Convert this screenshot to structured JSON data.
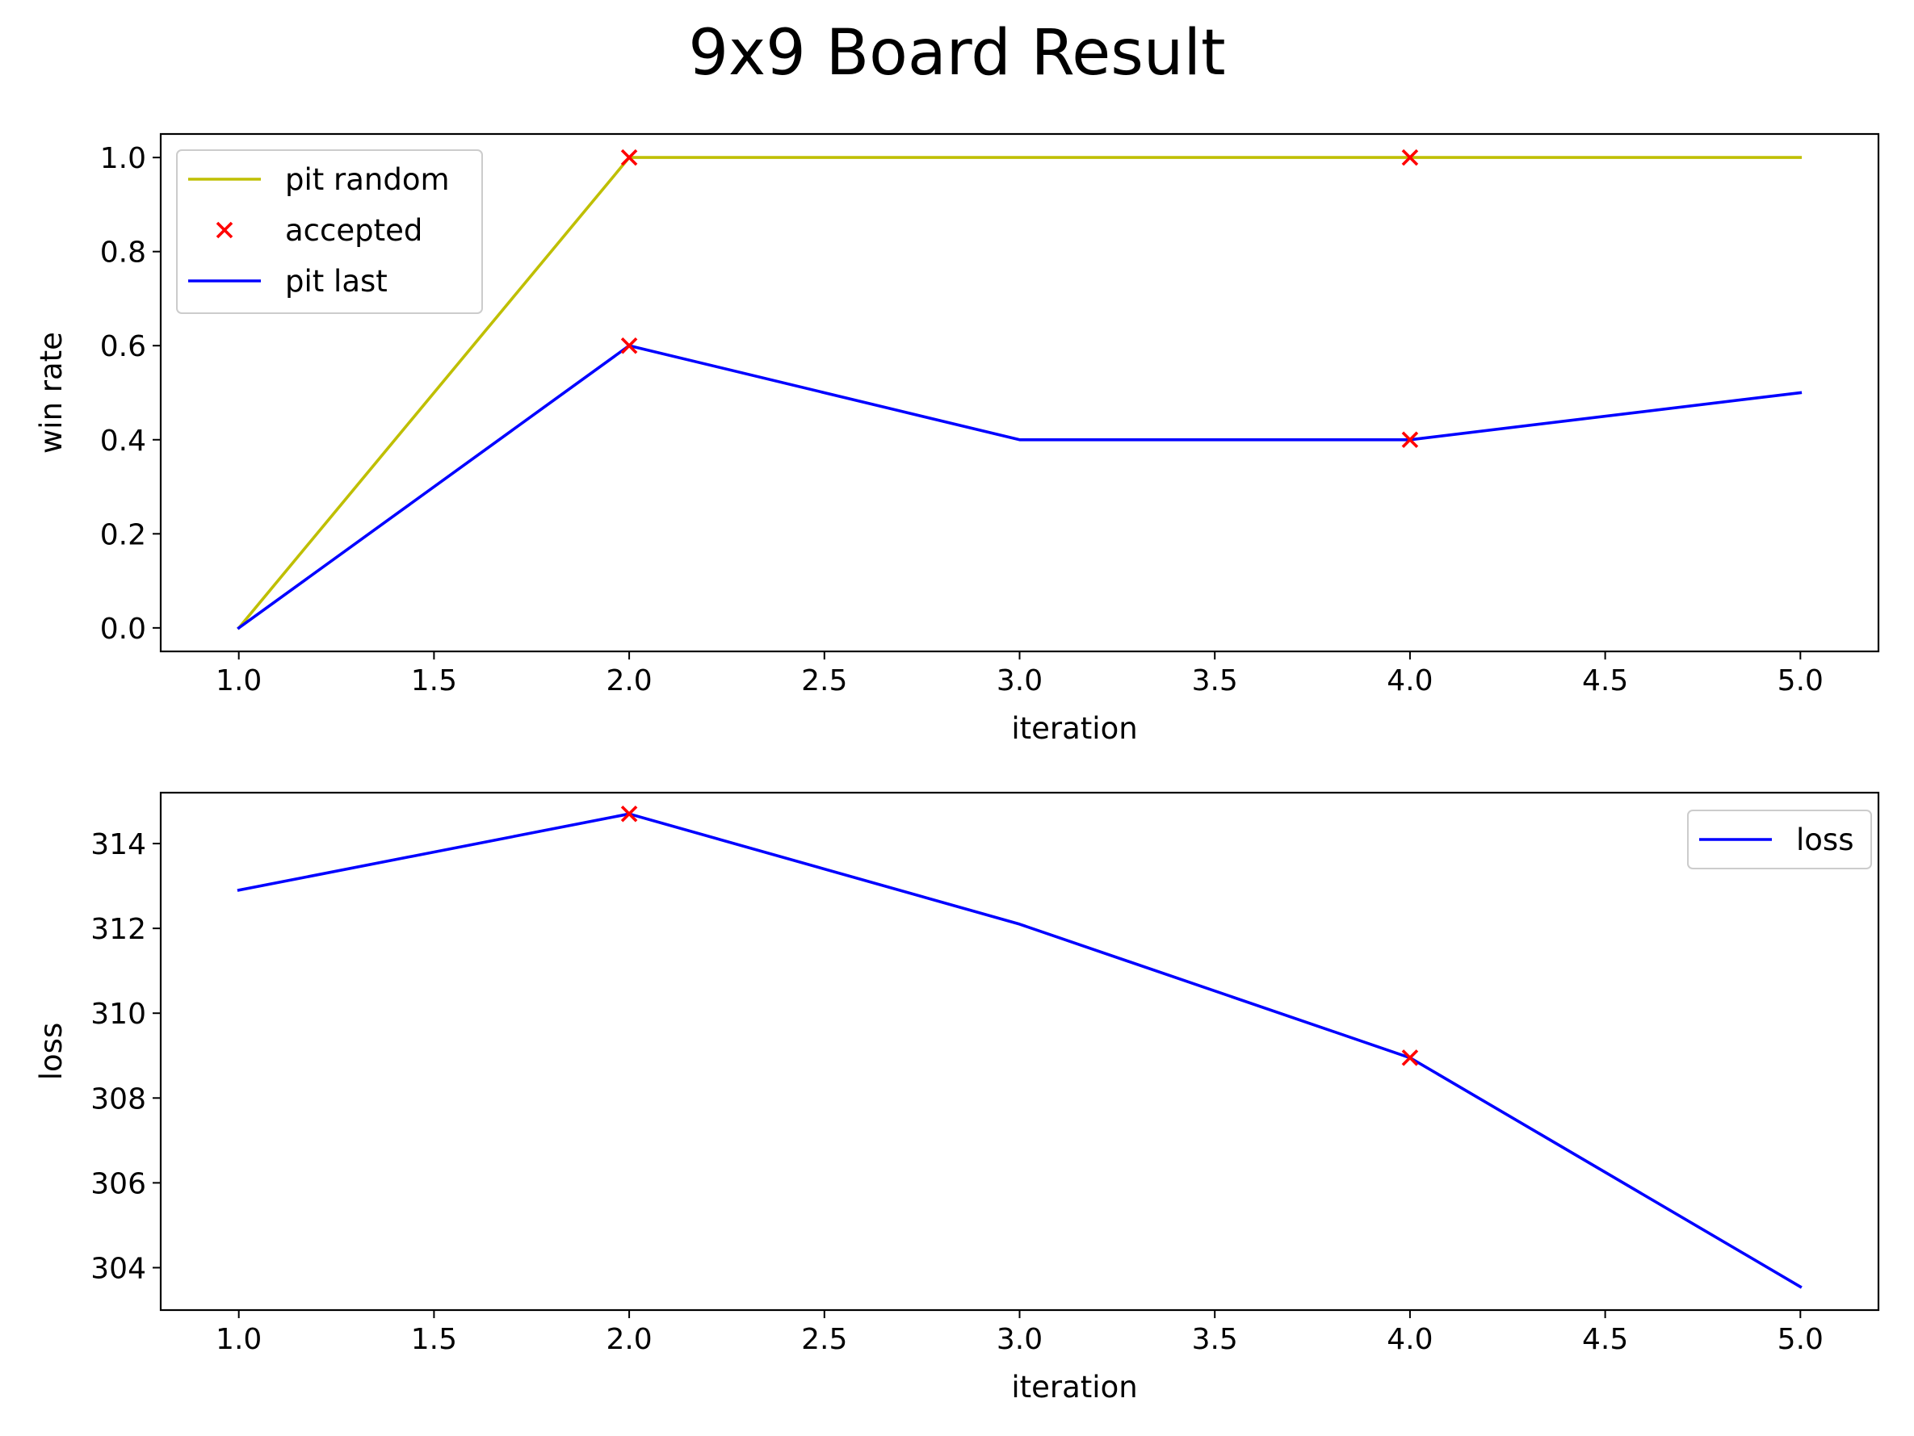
{
  "figure_title": "9x9 Board Result",
  "colors": {
    "pit_random": "#bfbf00",
    "pit_last": "#0000ff",
    "accepted": "#ff0000",
    "loss": "#0000ff"
  },
  "chart_data": [
    {
      "type": "line",
      "xlabel": "iteration",
      "ylabel": "win rate",
      "xlim": [
        0.8,
        5.2
      ],
      "ylim": [
        -0.05,
        1.05
      ],
      "xticks": [
        1.0,
        1.5,
        2.0,
        2.5,
        3.0,
        3.5,
        4.0,
        4.5,
        5.0
      ],
      "xtick_labels": [
        "1.0",
        "1.5",
        "2.0",
        "2.5",
        "3.0",
        "3.5",
        "4.0",
        "4.5",
        "5.0"
      ],
      "yticks": [
        0.0,
        0.2,
        0.4,
        0.6,
        0.8,
        1.0
      ],
      "ytick_labels": [
        "0.0",
        "0.2",
        "0.4",
        "0.6",
        "0.8",
        "1.0"
      ],
      "legend_position": "upper-left",
      "series": [
        {
          "name": "pit random",
          "kind": "line",
          "color": "#bfbf00",
          "x": [
            1,
            2,
            3,
            4,
            5
          ],
          "y": [
            0.0,
            1.0,
            1.0,
            1.0,
            1.0
          ]
        },
        {
          "name": "accepted",
          "kind": "scatter",
          "marker": "x",
          "color": "#ff0000",
          "x": [
            2,
            4,
            2,
            4
          ],
          "y": [
            1.0,
            1.0,
            0.6,
            0.4
          ]
        },
        {
          "name": "pit last",
          "kind": "line",
          "color": "#0000ff",
          "x": [
            1,
            2,
            3,
            4,
            5
          ],
          "y": [
            0.0,
            0.6,
            0.4,
            0.4,
            0.5
          ]
        }
      ]
    },
    {
      "type": "line",
      "xlabel": "iteration",
      "ylabel": "loss",
      "xlim": [
        0.8,
        5.2
      ],
      "ylim": [
        303.0,
        315.2
      ],
      "xticks": [
        1.0,
        1.5,
        2.0,
        2.5,
        3.0,
        3.5,
        4.0,
        4.5,
        5.0
      ],
      "xtick_labels": [
        "1.0",
        "1.5",
        "2.0",
        "2.5",
        "3.0",
        "3.5",
        "4.0",
        "4.5",
        "5.0"
      ],
      "yticks": [
        304,
        306,
        308,
        310,
        312,
        314
      ],
      "ytick_labels": [
        "304",
        "306",
        "308",
        "310",
        "312",
        "314"
      ],
      "legend_position": "upper-right",
      "series": [
        {
          "name": "loss",
          "kind": "line",
          "color": "#0000ff",
          "x": [
            1,
            2,
            3,
            4,
            5
          ],
          "y": [
            312.9,
            314.7,
            312.1,
            308.95,
            303.55
          ]
        },
        {
          "name": "",
          "kind": "scatter",
          "marker": "x",
          "color": "#ff0000",
          "x": [
            2,
            4
          ],
          "y": [
            314.7,
            308.95
          ]
        }
      ]
    }
  ]
}
